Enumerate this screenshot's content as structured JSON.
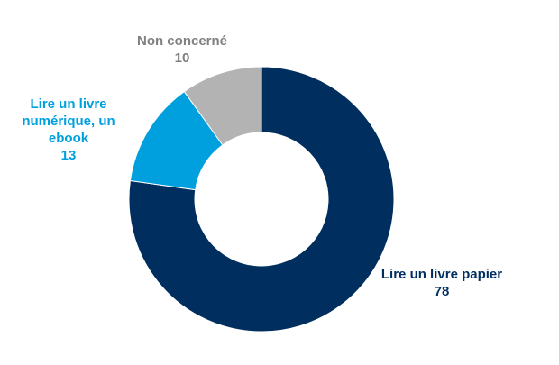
{
  "chart_data": {
    "type": "pie",
    "donut": true,
    "title": "",
    "slices": [
      {
        "label_lines": [
          "Lire un livre papier"
        ],
        "value": 78,
        "color": "#002f5f"
      },
      {
        "label_lines": [
          "Lire un livre",
          "numérique, un",
          "ebook"
        ],
        "value": 13,
        "color": "#00a0df"
      },
      {
        "label_lines": [
          "Non concerné"
        ],
        "value": 10,
        "color": "#b3b3b3"
      }
    ],
    "start_angle_deg": 0,
    "direction": "clockwise",
    "legend": "none",
    "labels_position": "outside"
  }
}
